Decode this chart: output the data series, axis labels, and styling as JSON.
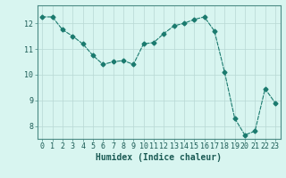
{
  "x": [
    0,
    1,
    2,
    3,
    4,
    5,
    6,
    7,
    8,
    9,
    10,
    11,
    12,
    13,
    14,
    15,
    16,
    17,
    18,
    19,
    20,
    21,
    22,
    23
  ],
  "y": [
    12.25,
    12.25,
    11.75,
    11.5,
    11.2,
    10.75,
    10.4,
    10.5,
    10.55,
    10.4,
    11.2,
    11.25,
    11.6,
    11.9,
    12.0,
    12.15,
    12.25,
    11.7,
    10.1,
    8.3,
    7.65,
    7.8,
    9.45,
    8.9
  ],
  "line_color": "#1a7a6e",
  "marker": "D",
  "marker_size": 2.5,
  "bg_color": "#d8f5f0",
  "grid_color_major": "#b8d8d4",
  "grid_color_minor": "#c8e8e4",
  "xlabel": "Humidex (Indice chaleur)",
  "xlim": [
    -0.5,
    23.5
  ],
  "ylim": [
    7.5,
    12.7
  ],
  "yticks": [
    8,
    9,
    10,
    11,
    12
  ],
  "xticks": [
    0,
    1,
    2,
    3,
    4,
    5,
    6,
    7,
    8,
    9,
    10,
    11,
    12,
    13,
    14,
    15,
    16,
    17,
    18,
    19,
    20,
    21,
    22,
    23
  ],
  "axis_color": "#4a8a84",
  "label_color": "#1a5a54",
  "font_size_xlabel": 7,
  "font_size_ticks": 6
}
